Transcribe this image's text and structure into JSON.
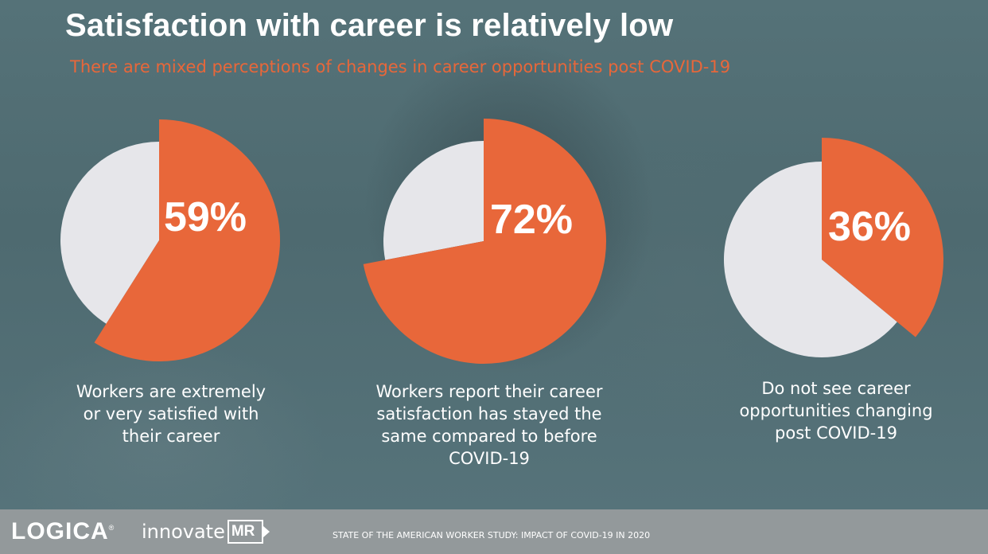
{
  "header": {
    "title": "Satisfaction with career is relatively low",
    "subtitle": "There are mixed perceptions of changes in career opportunities post COVID-19"
  },
  "colors": {
    "accent": "#e8673a",
    "remainder": "#e6e6ea",
    "background": "#4f6b72",
    "footer": "#93999b"
  },
  "chart_data": [
    {
      "type": "pie",
      "values": [
        59,
        41
      ],
      "highlight_label": "59%",
      "caption": [
        "Workers are extremely",
        "or very satisfied with",
        "their career"
      ]
    },
    {
      "type": "pie",
      "values": [
        72,
        28
      ],
      "highlight_label": "72%",
      "caption": [
        "Workers report their career",
        "satisfaction has stayed the",
        "same compared to before",
        "COVID-19"
      ]
    },
    {
      "type": "pie",
      "values": [
        36,
        64
      ],
      "highlight_label": "36%",
      "caption": [
        "Do not see career",
        "opportunities changing",
        "post COVID-19"
      ]
    }
  ],
  "footer": {
    "logo_logica": "LOGICA",
    "logo_logica_mark": "®",
    "logo_innovate": "innovate",
    "logo_mr": "MR",
    "study_text": "STATE OF THE AMERICAN WORKER STUDY: IMPACT OF COVID-19 IN 2020"
  }
}
